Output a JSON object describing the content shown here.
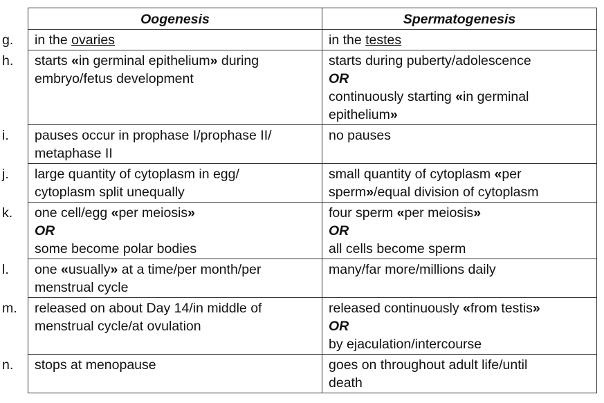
{
  "table": {
    "headers": [
      "Oogenesis",
      "Spermatogenesis"
    ],
    "rows": [
      {
        "label": "g.",
        "oo": [
          [
            {
              "t": "in the "
            },
            {
              "t": "ovaries",
              "u": true
            }
          ]
        ],
        "sp": [
          [
            {
              "t": "in the "
            },
            {
              "t": "testes",
              "u": true
            }
          ]
        ]
      },
      {
        "label": "h.",
        "oo": [
          [
            {
              "t": "starts "
            },
            {
              "t": "«",
              "b": true
            },
            {
              "t": "in germinal epithelium"
            },
            {
              "t": "»",
              "b": true
            },
            {
              "t": " during"
            }
          ],
          [
            {
              "t": "embryo/fetus development"
            }
          ]
        ],
        "sp": [
          [
            {
              "t": "starts during puberty/adolescence"
            }
          ],
          "OR",
          [
            {
              "t": "continuously starting "
            },
            {
              "t": "«",
              "b": true
            },
            {
              "t": "in germinal"
            }
          ],
          [
            {
              "t": "epithelium"
            },
            {
              "t": "»",
              "b": true
            }
          ]
        ]
      },
      {
        "label": "i.",
        "oo": [
          [
            {
              "t": "pauses occur in prophase I/prophase II/"
            }
          ],
          [
            {
              "t": "metaphase II"
            }
          ]
        ],
        "sp": [
          [
            {
              "t": "no pauses"
            }
          ]
        ]
      },
      {
        "label": "j.",
        "oo": [
          [
            {
              "t": "large quantity of cytoplasm in egg/"
            }
          ],
          [
            {
              "t": "cytoplasm split unequally"
            }
          ]
        ],
        "sp": [
          [
            {
              "t": "small quantity of cytoplasm "
            },
            {
              "t": "«",
              "b": true
            },
            {
              "t": "per"
            }
          ],
          [
            {
              "t": "sperm"
            },
            {
              "t": "»",
              "b": true
            },
            {
              "t": "/equal division of cytoplasm"
            }
          ]
        ]
      },
      {
        "label": "k.",
        "oo": [
          [
            {
              "t": "one cell/egg "
            },
            {
              "t": "«",
              "b": true
            },
            {
              "t": "per meiosis"
            },
            {
              "t": "»",
              "b": true
            }
          ],
          "OR",
          [
            {
              "t": "some become polar bodies"
            }
          ]
        ],
        "sp": [
          [
            {
              "t": "four sperm "
            },
            {
              "t": "«",
              "b": true
            },
            {
              "t": "per meiosis"
            },
            {
              "t": "»",
              "b": true
            }
          ],
          "OR",
          [
            {
              "t": "all cells become sperm"
            }
          ]
        ]
      },
      {
        "label": "l.",
        "oo": [
          [
            {
              "t": "one "
            },
            {
              "t": "«",
              "b": true
            },
            {
              "t": "usually"
            },
            {
              "t": "»",
              "b": true
            },
            {
              "t": " at a time/per month/per"
            }
          ],
          [
            {
              "t": "menstrual cycle"
            }
          ]
        ],
        "sp": [
          [
            {
              "t": "many/far more/millions daily"
            }
          ]
        ]
      },
      {
        "label": "m.",
        "oo": [
          [
            {
              "t": "released on about Day 14/in middle of"
            }
          ],
          [
            {
              "t": "menstrual cycle/at ovulation"
            }
          ]
        ],
        "sp": [
          [
            {
              "t": "released continuously "
            },
            {
              "t": "«",
              "b": true
            },
            {
              "t": "from testis"
            },
            {
              "t": "»",
              "b": true
            }
          ],
          "OR",
          [
            {
              "t": "by ejaculation/intercourse"
            }
          ]
        ]
      },
      {
        "label": "n.",
        "oo": [
          [
            {
              "t": "stops at menopause"
            }
          ]
        ],
        "sp": [
          [
            {
              "t": "goes on throughout adult life/until"
            }
          ],
          [
            {
              "t": "death"
            }
          ]
        ]
      }
    ]
  }
}
